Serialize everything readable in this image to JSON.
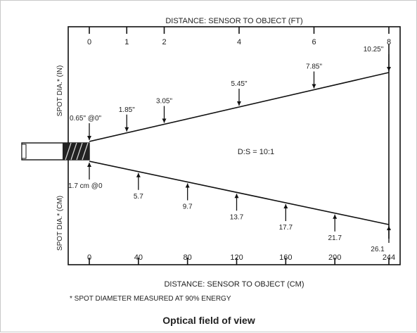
{
  "diagram": {
    "top_axis_title": "DISTANCE: SENSOR TO OBJECT (FT)",
    "bottom_axis_title": "DISTANCE: SENSOR TO OBJECT (CM)",
    "left_label_upper": "SPOT DIA.* (IN)",
    "left_label_lower": "SPOT DIA.* (CM)",
    "ratio_label": "D:S = 10:1",
    "footnote": "* SPOT DIAMETER MEASURED AT 90% ENERGY",
    "caption": "Optical field of view",
    "top_ticks": [
      {
        "label": "0",
        "value": 0
      },
      {
        "label": "1",
        "value": 1
      },
      {
        "label": "2",
        "value": 2
      },
      {
        "label": "4",
        "value": 4
      },
      {
        "label": "6",
        "value": 6
      },
      {
        "label": "8",
        "value": 8
      }
    ],
    "bottom_ticks": [
      {
        "label": "0",
        "value": 0
      },
      {
        "label": "40",
        "value": 40
      },
      {
        "label": "80",
        "value": 80
      },
      {
        "label": "120",
        "value": 120
      },
      {
        "label": "160",
        "value": 160
      },
      {
        "label": "200",
        "value": 200
      },
      {
        "label": "244",
        "value": 244
      }
    ],
    "upper_spots": [
      {
        "label": "0.65\" @0\"",
        "ft": 0
      },
      {
        "label": "1.85\"",
        "ft": 1
      },
      {
        "label": "3.05\"",
        "ft": 2
      },
      {
        "label": "5.45\"",
        "ft": 4
      },
      {
        "label": "7.85\"",
        "ft": 6
      },
      {
        "label": "10.25\"",
        "ft": 8
      }
    ],
    "lower_spots": [
      {
        "label": "1.7 cm @0",
        "cm": 0
      },
      {
        "label": "5.7",
        "cm": 40
      },
      {
        "label": "9.7",
        "cm": 80
      },
      {
        "label": "13.7",
        "cm": 120
      },
      {
        "label": "17.7",
        "cm": 160
      },
      {
        "label": "21.7",
        "cm": 200
      },
      {
        "label": "26.1",
        "cm": 244
      }
    ]
  }
}
